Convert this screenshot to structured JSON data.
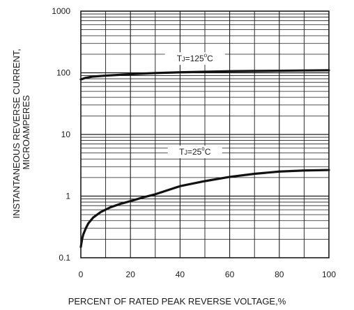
{
  "chart_data": {
    "type": "line",
    "xlabel": "PERCENT OF RATED PEAK REVERSE VOLTAGE,%",
    "ylabel": [
      "INSTANTANEOUS REVERSE CURRENT,",
      "MICROAMPERES"
    ],
    "xlim": [
      0,
      100
    ],
    "ylim": [
      0.1,
      1000
    ],
    "yscale": "log",
    "grid": true,
    "x_ticks": [
      "0",
      "20",
      "40",
      "60",
      "80",
      "100"
    ],
    "y_ticks": [
      "0.1",
      "1",
      "10",
      "100",
      "1000"
    ],
    "series": [
      {
        "label_prefix": "T",
        "label_sub": "J",
        "label_mid": "=125",
        "label_sup": "o",
        "label_suffix": "C",
        "x": [
          0,
          2,
          5,
          10,
          20,
          30,
          40,
          50,
          60,
          70,
          80,
          90,
          100
        ],
        "y": [
          78,
          83,
          87,
          90,
          95,
          99,
          102,
          104,
          106,
          107,
          108,
          109,
          110
        ]
      },
      {
        "label_prefix": "T",
        "label_sub": "J",
        "label_mid": "=25",
        "label_sup": "o",
        "label_suffix": "C",
        "x": [
          0,
          0.5,
          1,
          2,
          3,
          5,
          8,
          12,
          16,
          20,
          25,
          30,
          40,
          50,
          60,
          70,
          80,
          90,
          100
        ],
        "y": [
          0.15,
          0.2,
          0.24,
          0.3,
          0.36,
          0.45,
          0.55,
          0.66,
          0.75,
          0.83,
          0.95,
          1.07,
          1.45,
          1.75,
          2.05,
          2.3,
          2.5,
          2.6,
          2.65
        ]
      }
    ]
  }
}
